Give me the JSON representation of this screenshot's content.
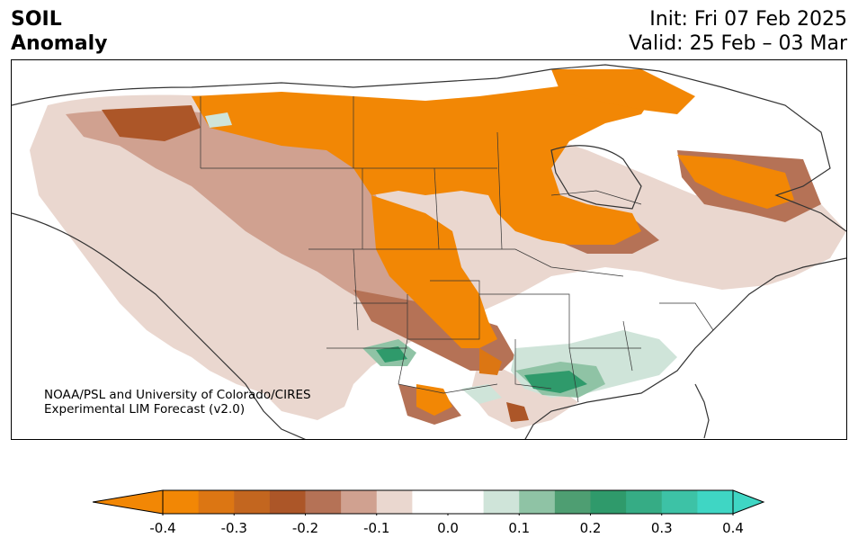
{
  "header": {
    "title_line1": "SOIL",
    "title_line2": "Anomaly",
    "init_text": "Init: Fri 07 Feb 2025",
    "valid_text": "Valid: 25 Feb – 03 Mar"
  },
  "credit": {
    "line1": "NOAA/PSL and University of Colorado/CIRES",
    "line2": "Experimental LIM Forecast (v2.0)"
  },
  "colorbar": {
    "ticks": [
      "-0.4",
      "-0.3",
      "-0.2",
      "-0.1",
      "0.0",
      "0.1",
      "0.2",
      "0.3",
      "0.4"
    ],
    "colors": [
      "#f28705",
      "#dc7613",
      "#c3661f",
      "#ac5628",
      "#b57256",
      "#d0a190",
      "#ead7cf",
      "#ffffff",
      "#ffffff",
      "#cfe4d9",
      "#8fc3a5",
      "#4e9e72",
      "#2f9a6b",
      "#36ac85",
      "#3dc2a6",
      "#3fd6c4"
    ],
    "under_color": "#f28705",
    "over_color": "#3fd6c4"
  }
}
